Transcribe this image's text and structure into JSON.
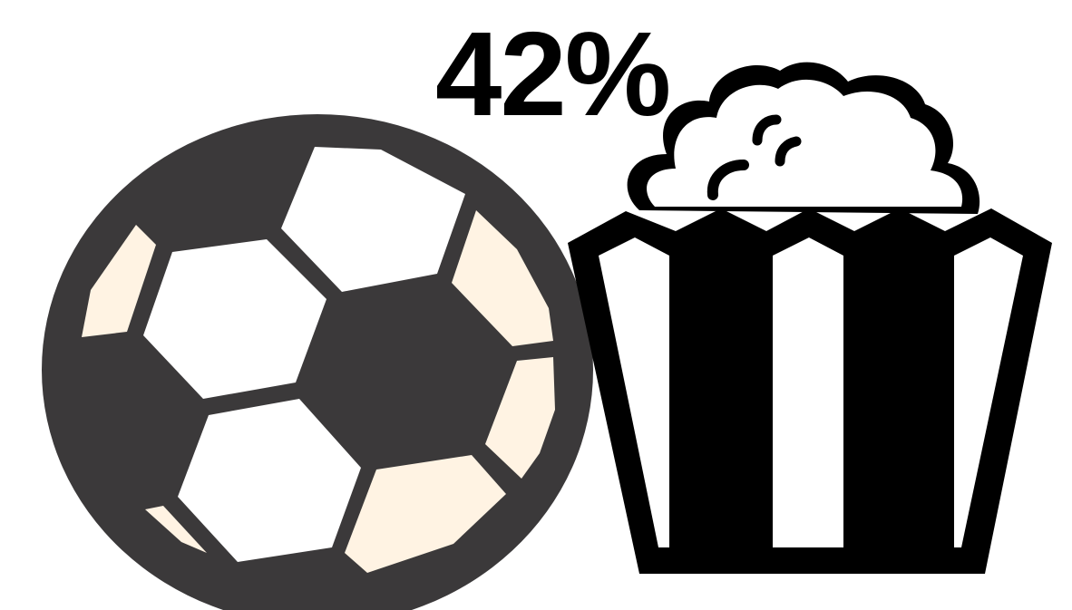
{
  "headline": {
    "value_text": "42%",
    "value": 42,
    "unit": "%"
  },
  "icons": [
    {
      "name": "soccer-ball-icon",
      "colors": {
        "outline": "#3b393a",
        "panel_light": "#fff3e3",
        "panel_white": "#ffffff"
      }
    },
    {
      "name": "popcorn-bucket-icon",
      "colors": {
        "fill": "#000000",
        "background": "#ffffff"
      }
    }
  ]
}
